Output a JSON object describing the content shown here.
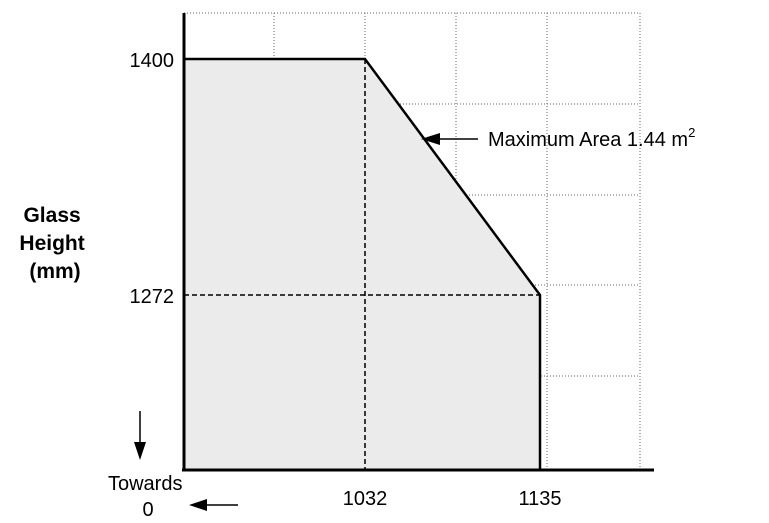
{
  "chart_data": {
    "type": "area",
    "title": "",
    "xlabel": "",
    "ylabel": "Glass Height (mm)",
    "ylabel_lines": [
      "Glass",
      "Height",
      "(mm)"
    ],
    "x_ticks": [
      "1032",
      "1135"
    ],
    "y_ticks": [
      "1400",
      "1272"
    ],
    "origin_label_lines": [
      "Towards",
      "0"
    ],
    "annotation": {
      "text": "Maximum Area 1.44 m",
      "superscript": "2"
    },
    "series": [
      {
        "values": [
          [
            0,
            1400
          ],
          [
            1032,
            1400
          ],
          [
            1135,
            1272
          ],
          [
            1135,
            0
          ]
        ]
      }
    ],
    "grid": true,
    "colors": {
      "fill": "#ebebeb",
      "line": "#000000",
      "grid": "#555555"
    }
  }
}
